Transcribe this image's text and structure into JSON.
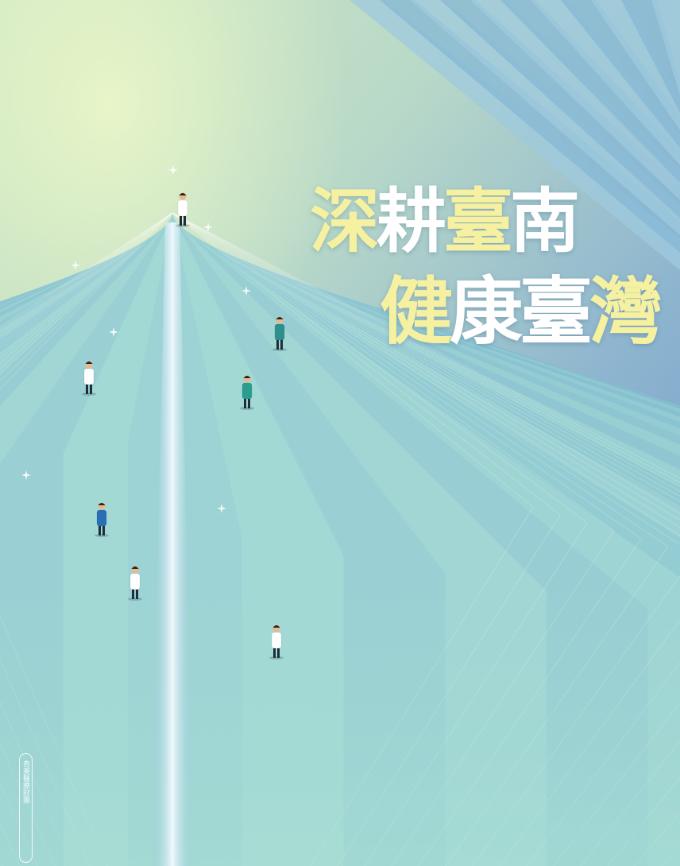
{
  "headline": {
    "line1": [
      {
        "text": "深",
        "color": "#f6f1a0"
      },
      {
        "text": "耕",
        "color": "#ffffff"
      },
      {
        "text": "臺",
        "color": "#f6f1a0"
      },
      {
        "text": "南",
        "color": "#ffffff"
      }
    ],
    "line2": [
      {
        "text": "健",
        "color": "#f6f1a0"
      },
      {
        "text": "康",
        "color": "#ffffff"
      },
      {
        "text": "臺",
        "color": "#ffffff"
      },
      {
        "text": "灣",
        "color": "#f6f1a0"
      }
    ]
  },
  "vertical_tag": "奇美醫療財團",
  "figures": [
    {
      "name": "doctor-figure-top",
      "icon": "doctor-figure-icon",
      "coat": "#ffffff"
    },
    {
      "name": "surgeon-figure",
      "icon": "surgeon-figure-icon",
      "coat": "#2e8f8c"
    },
    {
      "name": "nurse-figure-teal",
      "icon": "nurse-figure-icon",
      "coat": "#2a9d8f"
    },
    {
      "name": "female-doctor-figure",
      "icon": "doctor-figure-icon",
      "coat": "#ffffff"
    },
    {
      "name": "blue-scrubs-figure",
      "icon": "surgeon-figure-icon",
      "coat": "#2a6fb5"
    },
    {
      "name": "doctor-figure-small",
      "icon": "doctor-figure-icon",
      "coat": "#ffffff"
    },
    {
      "name": "doctor-figure-bottom",
      "icon": "doctor-figure-icon",
      "coat": "#ffffff"
    }
  ],
  "colors": {
    "background_top": "#dff0c4",
    "background_blue": "#6d9ac9",
    "stripe_light": "#a8dcd6",
    "stripe_dark": "#78b3cc",
    "highlight_yellow": "#f6f1a0"
  }
}
